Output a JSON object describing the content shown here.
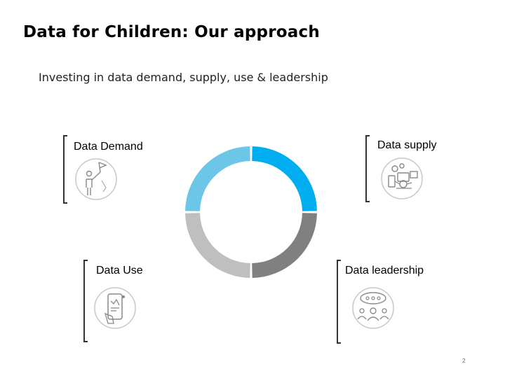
{
  "title": "Data for Children: Our approach",
  "subtitle": "Investing in data demand, supply, use & leadership",
  "items": [
    {
      "label": "Data Demand",
      "icon": "person-flag-icon"
    },
    {
      "label": "Data supply",
      "icon": "data-devices-icon"
    },
    {
      "label": "Data Use",
      "icon": "mobile-analytics-icon"
    },
    {
      "label": "Data leadership",
      "icon": "leadership-meeting-icon"
    }
  ],
  "ring_segments": [
    {
      "quadrant": "top-right",
      "color": "#00AEEF"
    },
    {
      "quadrant": "bottom-right",
      "color": "#808080"
    },
    {
      "quadrant": "bottom-left",
      "color": "#BFBFBF"
    },
    {
      "quadrant": "top-left",
      "color": "#6BC6E8"
    }
  ],
  "slide_number": "2"
}
